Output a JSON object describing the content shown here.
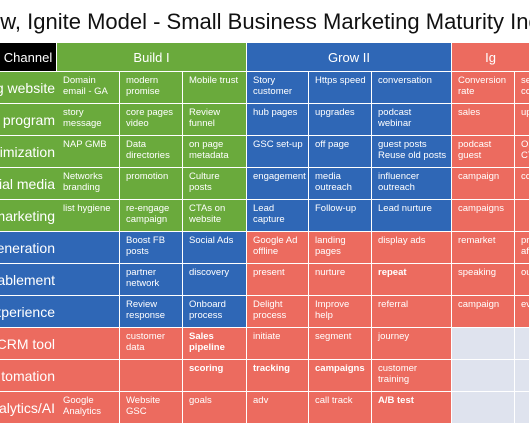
{
  "title": "ow, Ignite Model - Small Business Marketing Maturity Index",
  "headers": {
    "channel": "Channel",
    "build": "Build I",
    "grow": "Grow II",
    "ignite": "Ig"
  },
  "rows": [
    {
      "label": "g website",
      "label_color": "green",
      "cells": [
        {
          "text": "Domain email - GA",
          "color": "g"
        },
        {
          "text": "modern promise",
          "color": "g"
        },
        {
          "text": "Mobile trust",
          "color": "g"
        },
        {
          "text": "Story customer",
          "color": "b"
        },
        {
          "text": "Https speed",
          "color": "b"
        },
        {
          "text": "conversation",
          "color": "b"
        },
        {
          "text": "Conversion rate",
          "color": "r"
        },
        {
          "text": "seg conten",
          "color": "r"
        }
      ]
    },
    {
      "label": "t program",
      "label_color": "green",
      "cells": [
        {
          "text": "story message",
          "color": "g"
        },
        {
          "text": "core pages video",
          "color": "g"
        },
        {
          "text": "Review funnel",
          "color": "g"
        },
        {
          "text": "hub pages",
          "color": "b"
        },
        {
          "text": "upgrades",
          "color": "b"
        },
        {
          "text": "podcast webinar",
          "color": "b"
        },
        {
          "text": "sales",
          "color": "r"
        },
        {
          "text": "upse",
          "color": "r"
        }
      ]
    },
    {
      "label": "timization",
      "label_color": "green",
      "cells": [
        {
          "text": "NAP GMB",
          "color": "g"
        },
        {
          "text": "Data directories",
          "color": "g"
        },
        {
          "text": "on page metadata",
          "color": "g"
        },
        {
          "text": "GSC set-up",
          "color": "b"
        },
        {
          "text": "off page",
          "color": "b"
        },
        {
          "text": "guest posts Reuse old posts",
          "color": "b"
        },
        {
          "text": "podcast guest",
          "color": "r"
        },
        {
          "text": "Org CTR",
          "color": "r"
        }
      ]
    },
    {
      "label": "cial media",
      "label_color": "green",
      "cells": [
        {
          "text": "Networks branding",
          "color": "g"
        },
        {
          "text": "promotion",
          "color": "g"
        },
        {
          "text": "Culture posts",
          "color": "g"
        },
        {
          "text": "engagement",
          "color": "b"
        },
        {
          "text": "media outreach",
          "color": "b"
        },
        {
          "text": "influencer outreach",
          "color": "b"
        },
        {
          "text": "campaign",
          "color": "r"
        },
        {
          "text": "con",
          "color": "r"
        }
      ]
    },
    {
      "label": "marketing",
      "label_color": "green",
      "cells": [
        {
          "text": "list hygiene",
          "color": "g"
        },
        {
          "text": "re-engage campaign",
          "color": "g"
        },
        {
          "text": "CTAs on website",
          "color": "g"
        },
        {
          "text": "Lead capture",
          "color": "b"
        },
        {
          "text": "Follow-up",
          "color": "b"
        },
        {
          "text": "Lead nurture",
          "color": "b"
        },
        {
          "text": "campaigns",
          "color": "r"
        },
        {
          "text": "",
          "color": "r"
        }
      ]
    },
    {
      "label": "eneration",
      "label_color": "blue",
      "cells": [
        {
          "text": "",
          "color": "b"
        },
        {
          "text": "Boost FB posts",
          "color": "b"
        },
        {
          "text": "Social Ads",
          "color": "b"
        },
        {
          "text": "Google Ad offline",
          "color": "r"
        },
        {
          "text": "landing pages",
          "color": "r"
        },
        {
          "text": "display ads",
          "color": "r"
        },
        {
          "text": "remarket",
          "color": "r"
        },
        {
          "text": "pro affil",
          "color": "r"
        }
      ]
    },
    {
      "label": "ablement",
      "label_color": "blue",
      "cells": [
        {
          "text": "",
          "color": "b"
        },
        {
          "text": "partner network",
          "color": "b"
        },
        {
          "text": "discovery",
          "color": "b"
        },
        {
          "text": "present",
          "color": "r"
        },
        {
          "text": "nurture",
          "color": "r"
        },
        {
          "text": "repeat",
          "color": "r",
          "bold": true
        },
        {
          "text": "speaking",
          "color": "r"
        },
        {
          "text": "out",
          "color": "r"
        }
      ]
    },
    {
      "label": "xperience",
      "label_color": "blue",
      "cells": [
        {
          "text": "",
          "color": "b"
        },
        {
          "text": "Review response",
          "color": "b"
        },
        {
          "text": "Onboard process",
          "color": "b"
        },
        {
          "text": "Delight process",
          "color": "r"
        },
        {
          "text": "Improve help",
          "color": "r"
        },
        {
          "text": "referral",
          "color": "r"
        },
        {
          "text": "campaign",
          "color": "r"
        },
        {
          "text": "eve",
          "color": "r"
        }
      ]
    },
    {
      "label": "CRM tool",
      "label_color": "red",
      "cells": [
        {
          "text": "",
          "color": "r"
        },
        {
          "text": "customer data",
          "color": "r"
        },
        {
          "text": "Sales pipeline",
          "color": "r",
          "bold": true
        },
        {
          "text": "initiate",
          "color": "r"
        },
        {
          "text": "segment",
          "color": "r"
        },
        {
          "text": "journey",
          "color": "r"
        },
        {
          "text": "",
          "color": "e"
        },
        {
          "text": "",
          "color": "e"
        }
      ]
    },
    {
      "label": "tomation",
      "label_color": "red",
      "cells": [
        {
          "text": "",
          "color": "r"
        },
        {
          "text": "",
          "color": "r"
        },
        {
          "text": "scoring",
          "color": "r",
          "bold": true
        },
        {
          "text": "tracking",
          "color": "r",
          "bold": true
        },
        {
          "text": "campaigns",
          "color": "r",
          "bold": true
        },
        {
          "text": "customer training",
          "color": "r"
        },
        {
          "text": "",
          "color": "e"
        },
        {
          "text": "",
          "color": "e"
        }
      ]
    },
    {
      "label": "nalytics/AI",
      "label_color": "red",
      "cells": [
        {
          "text": "Google Analytics",
          "color": "r"
        },
        {
          "text": "Website GSC",
          "color": "r"
        },
        {
          "text": "goals",
          "color": "r"
        },
        {
          "text": "adv",
          "color": "r"
        },
        {
          "text": "call track",
          "color": "r"
        },
        {
          "text": "A/B test",
          "color": "r",
          "bold": true
        },
        {
          "text": "",
          "color": "e"
        },
        {
          "text": "",
          "color": "e"
        }
      ]
    }
  ]
}
